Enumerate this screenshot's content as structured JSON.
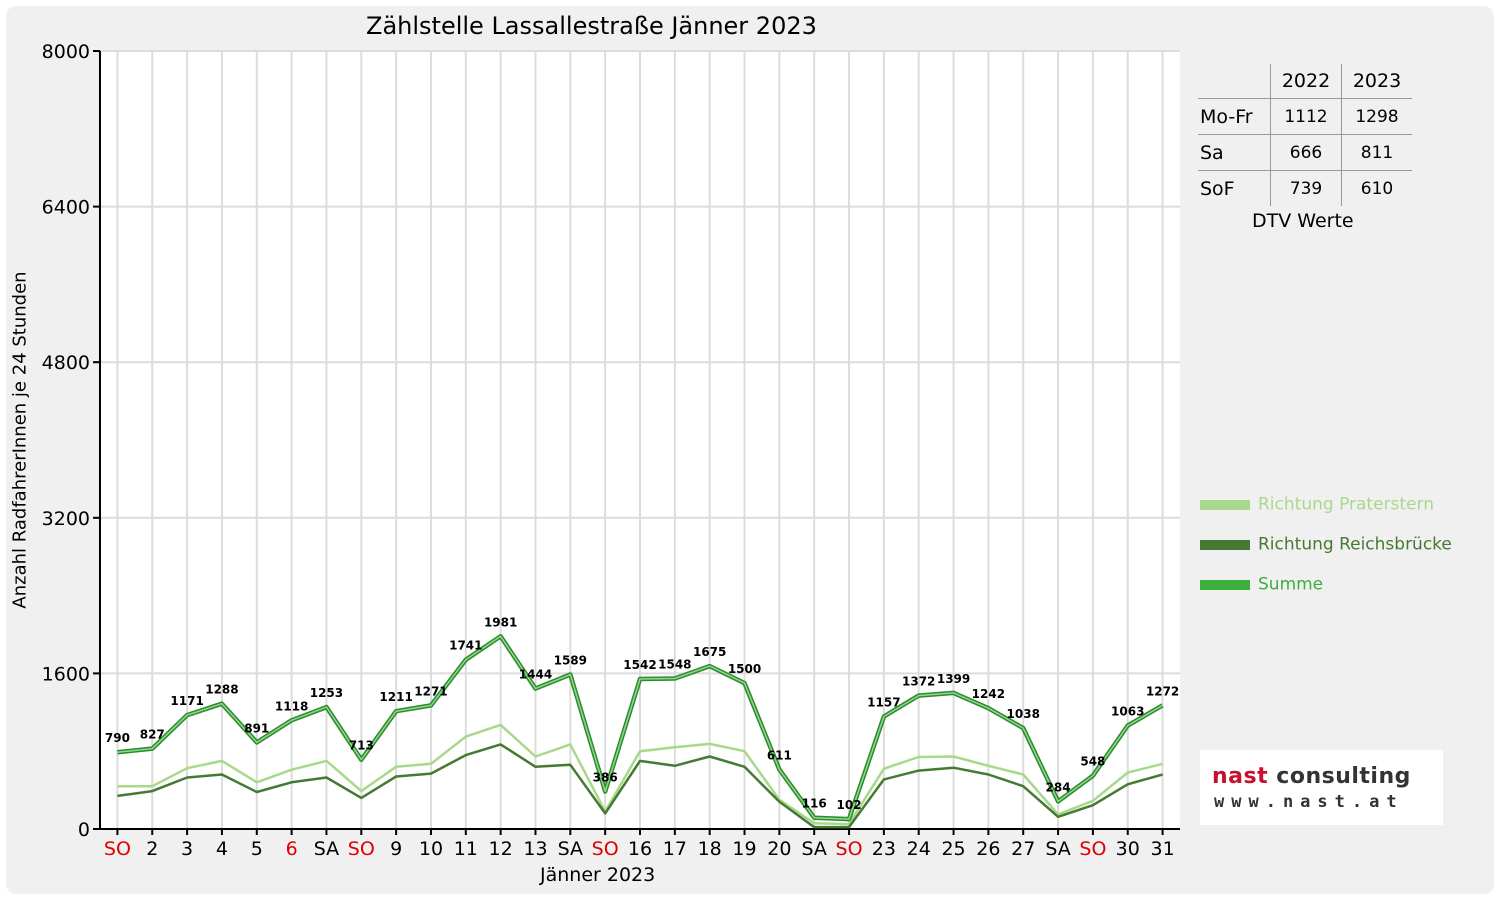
{
  "chart_data": {
    "type": "line",
    "title": "Zählstelle Lassallestraße Jänner 2023",
    "xlabel": "Jänner 2023",
    "ylabel": "Anzahl RadfahrerInnen je 24 Stunden",
    "ylim": [
      0,
      8000
    ],
    "yticks": [
      "0",
      "1600",
      "3200",
      "4800",
      "6400",
      "8000"
    ],
    "grid": true,
    "legend_position": "right",
    "categories": [
      "SO",
      "2",
      "3",
      "4",
      "5",
      "6",
      "SA",
      "SO",
      "9",
      "10",
      "11",
      "12",
      "13",
      "SA",
      "SO",
      "16",
      "17",
      "18",
      "19",
      "20",
      "SA",
      "SO",
      "23",
      "24",
      "25",
      "26",
      "27",
      "SA",
      "SO",
      "30",
      "31"
    ],
    "red_categories": [
      0,
      5,
      7,
      14,
      21,
      28
    ],
    "series": [
      {
        "name": "Richtung Praterstern",
        "color": "#a8d98a",
        "values": [
          440,
          440,
          625,
          700,
          480,
          610,
          700,
          390,
          640,
          670,
          950,
          1070,
          745,
          870,
          180,
          800,
          840,
          875,
          800,
          300,
          60,
          50,
          620,
          740,
          745,
          650,
          560,
          150,
          290,
          580,
          670
        ]
      },
      {
        "name": "Richtung Reichsbrücke",
        "color": "#457a33",
        "values": [
          340,
          390,
          530,
          560,
          380,
          480,
          530,
          320,
          540,
          570,
          760,
          870,
          640,
          660,
          160,
          700,
          650,
          745,
          640,
          280,
          20,
          20,
          510,
          600,
          630,
          560,
          440,
          125,
          245,
          460,
          560
        ]
      },
      {
        "name": "Summe",
        "color": "#3cae3c",
        "values": [
          790,
          827,
          1171,
          1288,
          891,
          1118,
          1253,
          713,
          1211,
          1271,
          1741,
          1981,
          1444,
          1589,
          386,
          1542,
          1548,
          1675,
          1500,
          611,
          116,
          102,
          1157,
          1372,
          1399,
          1242,
          1038,
          284,
          548,
          1063,
          1272
        ]
      }
    ],
    "data_labels": [
      "790",
      "827",
      "1171",
      "1288",
      "891",
      "1118",
      "1253",
      "713",
      "1211",
      "1271",
      "1741",
      "1981",
      "1444",
      "1589",
      "386",
      "1542",
      "1548",
      "1675",
      "1500",
      "611",
      "116",
      "102",
      "1157",
      "1372",
      "1399",
      "1242",
      "1038",
      "284",
      "548",
      "1063",
      "1272"
    ]
  },
  "dtv_table": {
    "years": [
      "2022",
      "2023"
    ],
    "rows": [
      {
        "label": "Mo-Fr",
        "v2022": "1112",
        "v2023": "1298"
      },
      {
        "label": "Sa",
        "v2022": "666",
        "v2023": "811"
      },
      {
        "label": "SoF",
        "v2022": "739",
        "v2023": "610"
      }
    ],
    "caption": "DTV Werte"
  },
  "legend": {
    "items": [
      {
        "label": "Richtung Praterstern",
        "color": "#a8d98a"
      },
      {
        "label": "Richtung Reichsbrücke",
        "color": "#457a33"
      },
      {
        "label": "Summe",
        "color": "#3cae3c"
      }
    ]
  },
  "logo": {
    "brand": "nast",
    "brand2": "consulting",
    "url": "www.nast.at"
  }
}
